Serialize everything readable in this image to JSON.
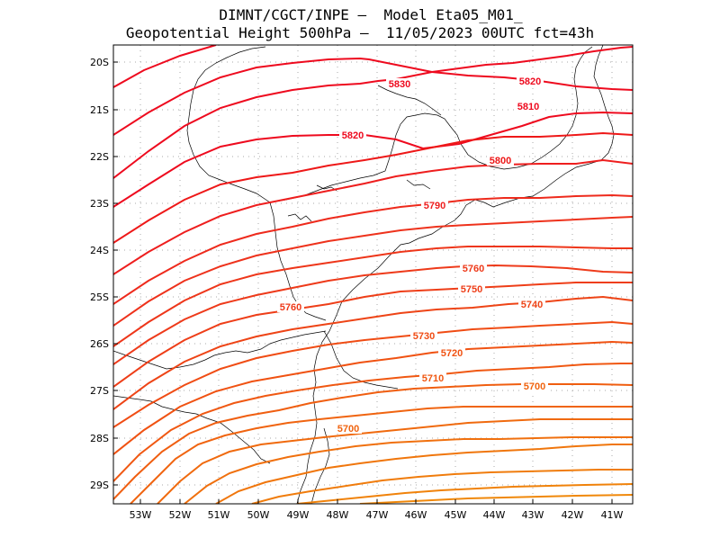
{
  "title": {
    "line1": "DIMNT/CGCT/INPE –  Model Eta05_M01_",
    "line2": "Geopotential Height 500hPa –  11/05/2023 00UTC fct=43h"
  },
  "chart_data": {
    "type": "contour-map",
    "field": "Geopotential Height 500hPa",
    "model": "Eta05_M01_",
    "run": "11/05/2023 00UTC",
    "forecast": "fct=43h",
    "lat_ticks": [
      "20S",
      "21S",
      "22S",
      "23S",
      "24S",
      "25S",
      "26S",
      "27S",
      "28S",
      "29S"
    ],
    "lon_ticks": [
      "53W",
      "52W",
      "51W",
      "50W",
      "49W",
      "48W",
      "47W",
      "46W",
      "45W",
      "44W",
      "43W",
      "42W",
      "41W"
    ],
    "grid": "dotted",
    "contour_interval": 10,
    "contour_labels": [
      {
        "text": "5830",
        "color": "#ee0a1e"
      },
      {
        "text": "5820",
        "color": "#ee0a1e"
      },
      {
        "text": "5810",
        "color": "#ee0a1e"
      },
      {
        "text": "5820",
        "color": "#ee0a1e"
      },
      {
        "text": "5800",
        "color": "#ee1818"
      },
      {
        "text": "5790",
        "color": "#ee1e1e"
      },
      {
        "text": "5760",
        "color": "#ee3a1a"
      },
      {
        "text": "5750",
        "color": "#ee3e18"
      },
      {
        "text": "5740",
        "color": "#ee4416"
      },
      {
        "text": "5760",
        "color": "#ee3a1a"
      },
      {
        "text": "5730",
        "color": "#f04c14"
      },
      {
        "text": "5720",
        "color": "#f05212"
      },
      {
        "text": "5710",
        "color": "#f05812"
      },
      {
        "text": "5700",
        "color": "#f06410"
      },
      {
        "text": "5700",
        "color": "#f06410"
      }
    ]
  }
}
